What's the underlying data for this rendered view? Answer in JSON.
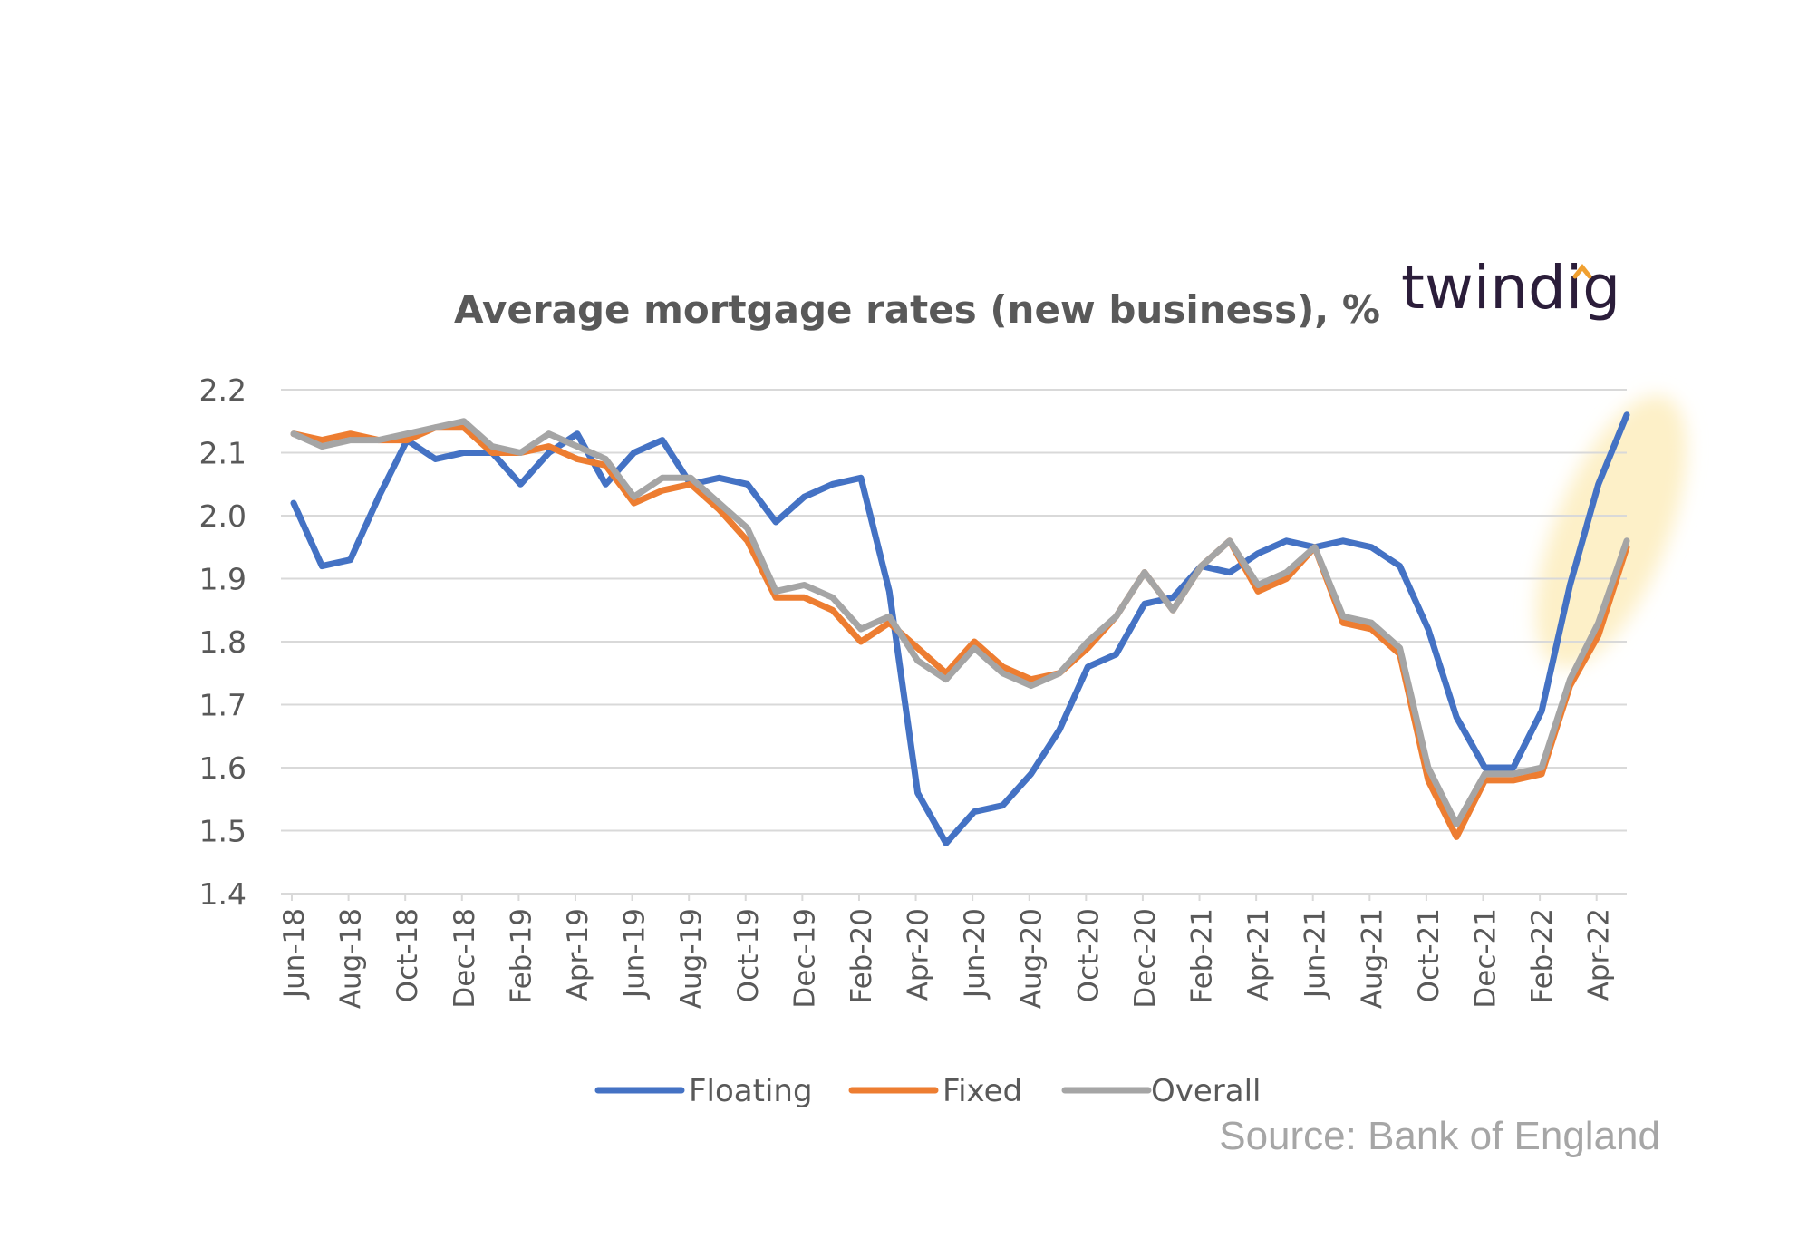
{
  "brand": {
    "logo_text": "twindig",
    "dot_color": "#f0a030",
    "text_color": "#2b1d3a"
  },
  "source_note": "Source: Bank of England",
  "colors": {
    "Floating": "#4472c4",
    "Fixed": "#ed7d31",
    "Overall": "#a5a5a5",
    "highlight": "#fdf0c8",
    "gridline": "#d9d9d9",
    "axis_text": "#595959"
  },
  "chart_data": {
    "type": "line",
    "title": "Average mortgage rates (new business), %",
    "xlabel": "",
    "ylabel": "",
    "ylim": [
      1.4,
      2.2
    ],
    "yticks": [
      "1.4",
      "1.5",
      "1.6",
      "1.7",
      "1.8",
      "1.9",
      "2.0",
      "2.1",
      "2.2"
    ],
    "grid": true,
    "legend_position": "bottom",
    "x": [
      "Jun-18",
      "Jul-18",
      "Aug-18",
      "Sep-18",
      "Oct-18",
      "Nov-18",
      "Dec-18",
      "Jan-19",
      "Feb-19",
      "Mar-19",
      "Apr-19",
      "May-19",
      "Jun-19",
      "Jul-19",
      "Aug-19",
      "Sep-19",
      "Oct-19",
      "Nov-19",
      "Dec-19",
      "Jan-20",
      "Feb-20",
      "Mar-20",
      "Apr-20",
      "May-20",
      "Jun-20",
      "Jul-20",
      "Aug-20",
      "Sep-20",
      "Oct-20",
      "Nov-20",
      "Dec-20",
      "Jan-21",
      "Feb-21",
      "Mar-21",
      "Apr-21",
      "May-21",
      "Jun-21",
      "Jul-21",
      "Aug-21",
      "Sep-21",
      "Oct-21",
      "Nov-21",
      "Dec-21",
      "Jan-22",
      "Feb-22",
      "Mar-22",
      "Apr-22",
      "May-22"
    ],
    "xtick_labels": [
      "Jun-18",
      "Aug-18",
      "Oct-18",
      "Dec-18",
      "Feb-19",
      "Apr-19",
      "Jun-19",
      "Aug-19",
      "Oct-19",
      "Dec-19",
      "Feb-20",
      "Apr-20",
      "Jun-20",
      "Aug-20",
      "Oct-20",
      "Dec-20",
      "Feb-21",
      "Apr-21",
      "Jun-21",
      "Aug-21",
      "Oct-21",
      "Dec-21",
      "Feb-22",
      "Apr-22"
    ],
    "series": [
      {
        "name": "Floating",
        "values": [
          2.02,
          1.92,
          1.93,
          2.03,
          2.12,
          2.09,
          2.1,
          2.1,
          2.05,
          2.1,
          2.13,
          2.05,
          2.1,
          2.12,
          2.05,
          2.06,
          2.05,
          1.99,
          2.03,
          2.05,
          2.06,
          1.88,
          1.56,
          1.48,
          1.53,
          1.54,
          1.59,
          1.66,
          1.76,
          1.78,
          1.86,
          1.87,
          1.92,
          1.91,
          1.94,
          1.96,
          1.95,
          1.96,
          1.95,
          1.92,
          1.82,
          1.68,
          1.6,
          1.6,
          1.69,
          1.89,
          2.05,
          2.16
        ]
      },
      {
        "name": "Fixed",
        "values": [
          2.13,
          2.12,
          2.13,
          2.12,
          2.12,
          2.14,
          2.14,
          2.1,
          2.1,
          2.11,
          2.09,
          2.08,
          2.02,
          2.04,
          2.05,
          2.01,
          1.96,
          1.87,
          1.87,
          1.85,
          1.8,
          1.83,
          1.79,
          1.75,
          1.8,
          1.76,
          1.74,
          1.75,
          1.79,
          1.84,
          1.91,
          1.85,
          1.92,
          1.96,
          1.88,
          1.9,
          1.95,
          1.83,
          1.82,
          1.78,
          1.58,
          1.49,
          1.58,
          1.58,
          1.59,
          1.73,
          1.81,
          1.95
        ]
      },
      {
        "name": "Overall",
        "values": [
          2.13,
          2.11,
          2.12,
          2.12,
          2.13,
          2.14,
          2.15,
          2.11,
          2.1,
          2.13,
          2.11,
          2.09,
          2.03,
          2.06,
          2.06,
          2.02,
          1.98,
          1.88,
          1.89,
          1.87,
          1.82,
          1.84,
          1.77,
          1.74,
          1.79,
          1.75,
          1.73,
          1.75,
          1.8,
          1.84,
          1.91,
          1.85,
          1.92,
          1.96,
          1.89,
          1.91,
          1.95,
          1.84,
          1.83,
          1.79,
          1.6,
          1.51,
          1.59,
          1.59,
          1.6,
          1.74,
          1.83,
          1.96
        ]
      }
    ],
    "highlight": {
      "from": "Feb-22",
      "to": "May-22"
    }
  }
}
